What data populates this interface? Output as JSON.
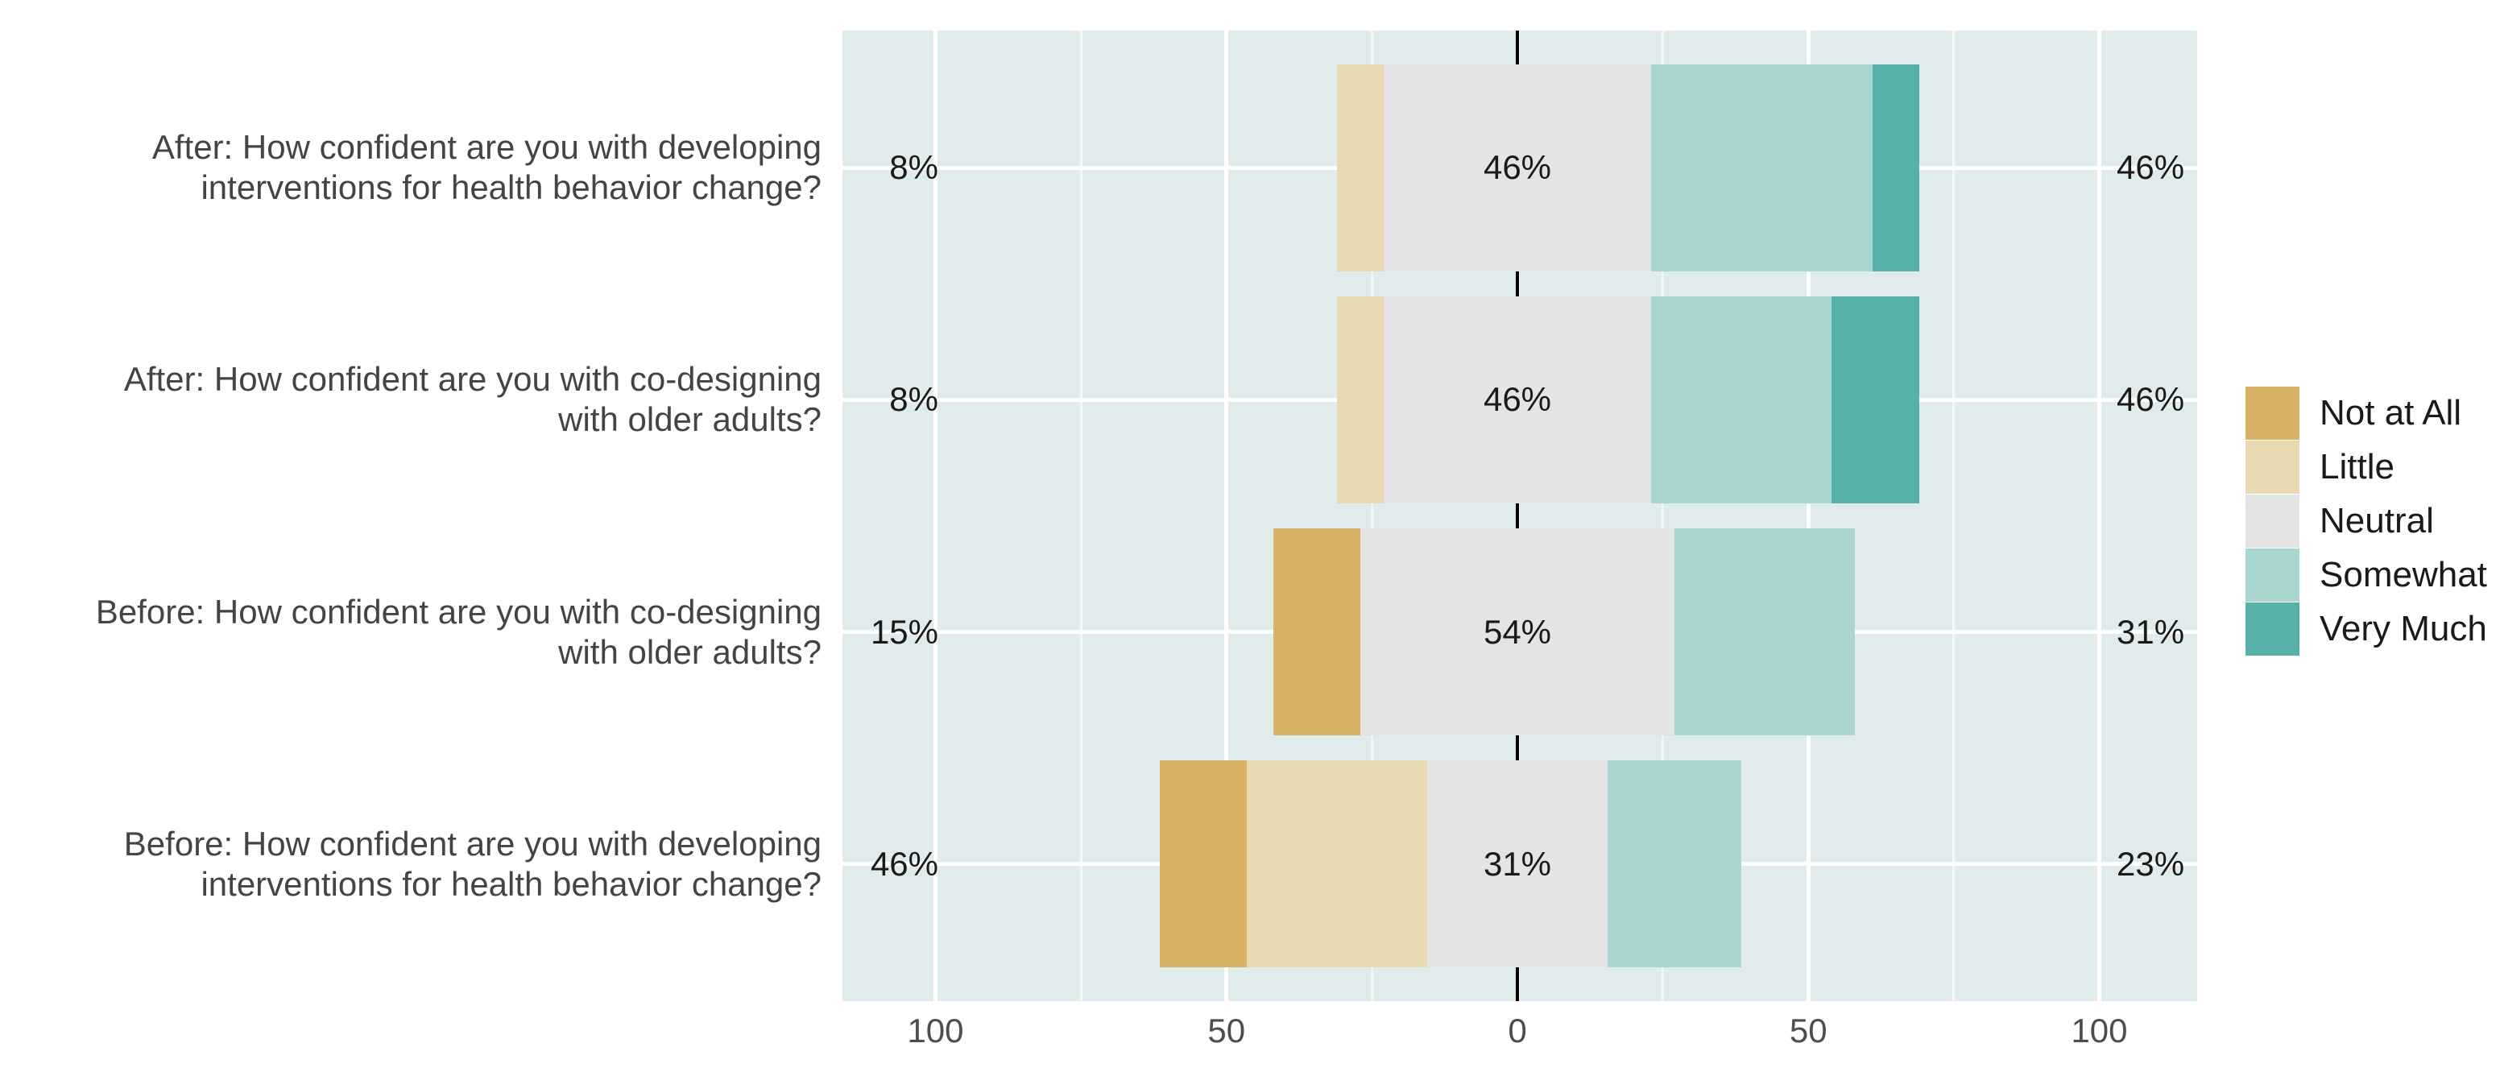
{
  "chart_data": {
    "type": "bar",
    "subtype": "diverging-stacked-likert",
    "title": "",
    "legend_position": "right",
    "legend": [
      "Not at All",
      "Little",
      "Neutral",
      "Somewhat",
      "Very Much"
    ],
    "series_colors": [
      "#d9b267",
      "#e9d9b1",
      "#e4e4e4",
      "#aad6d2",
      "#57b1a8"
    ],
    "neutral_centered_on_zero": true,
    "rows": [
      {
        "label_lines": [
          "After: How confident are you with developing",
          "interventions for health behavior change?"
        ],
        "values": [
          0,
          8,
          46,
          38,
          8
        ],
        "left_label": "8%",
        "center_label": "46%",
        "right_label": "46%"
      },
      {
        "label_lines": [
          "After: How confident are you with co-designing",
          "with older adults?"
        ],
        "values": [
          0,
          8,
          46,
          31,
          15
        ],
        "left_label": "8%",
        "center_label": "46%",
        "right_label": "46%"
      },
      {
        "label_lines": [
          "Before: How confident are you with co-designing",
          "with older adults?"
        ],
        "values": [
          15,
          0,
          54,
          31,
          0
        ],
        "left_label": "15%",
        "center_label": "54%",
        "right_label": "31%"
      },
      {
        "label_lines": [
          "Before: How confident are you with developing",
          "interventions for health behavior change?"
        ],
        "values": [
          15,
          31,
          31,
          23,
          0
        ],
        "left_label": "46%",
        "center_label": "31%",
        "right_label": "23%"
      }
    ],
    "x_axis": {
      "major_ticks": [
        -100,
        -50,
        0,
        50,
        100
      ],
      "tick_labels": [
        "100",
        "50",
        "0",
        "50",
        "100"
      ],
      "minor_gridlines": [
        -75,
        -25,
        25,
        75
      ],
      "range": [
        -116,
        116
      ],
      "zero_reference_line": true
    },
    "colors": {
      "panel_background": "#dfeceb",
      "major_gridline": "#ffffff",
      "minor_gridline": "rgba(255,255,255,0.6)",
      "zero_line": "#000000",
      "axis_text": "#4d4d4d",
      "row_label_text": "#444444",
      "pct_label_text": "#1a1a1a"
    }
  }
}
